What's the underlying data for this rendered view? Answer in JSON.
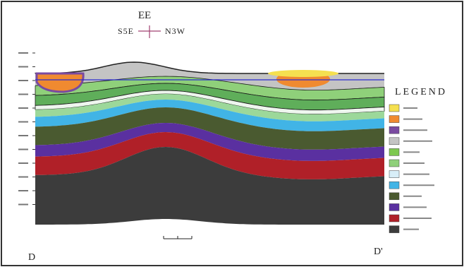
{
  "header": {
    "title": "EE",
    "left_direction": "S5E",
    "right_direction": "N3W"
  },
  "legend": {
    "title": "LEGEND"
  },
  "section": {
    "start": "D",
    "end": "D'"
  }
}
